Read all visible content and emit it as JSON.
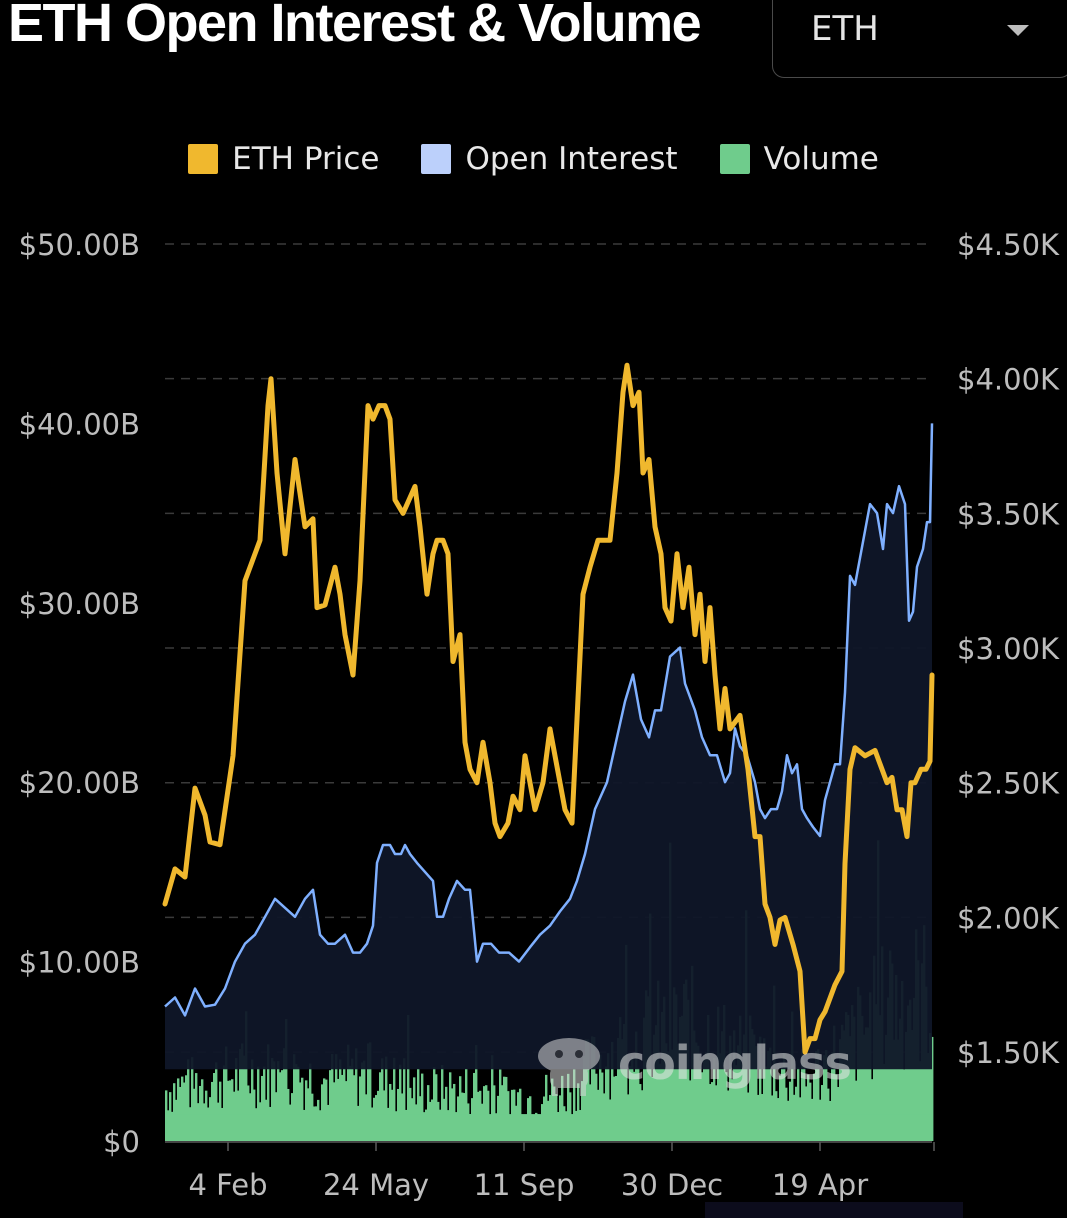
{
  "header": {
    "title": "ETH Open Interest & Volume"
  },
  "selector": {
    "value": "ETH"
  },
  "legend": [
    {
      "label": "ETH Price",
      "color": "#f0b82e"
    },
    {
      "label": "Open Interest",
      "color": "#bcd0fb"
    },
    {
      "label": "Volume",
      "color": "#6fcc8c"
    }
  ],
  "watermark": "coinglass",
  "chart_data": {
    "type": "line",
    "x_ticks": [
      "4 Feb",
      "24 May",
      "11 Sep",
      "30 Dec",
      "19 Apr"
    ],
    "left_axis": {
      "ticks": [
        "$0",
        "$10.00B",
        "$20.00B",
        "$30.00B",
        "$40.00B",
        "$50.00B"
      ],
      "range": [
        0,
        50
      ]
    },
    "right_axis": {
      "ticks": [
        "$1.50K",
        "$2.00K",
        "$2.50K",
        "$3.00K",
        "$3.50K",
        "$4.00K",
        "$4.50K"
      ],
      "range": [
        1170,
        4500
      ]
    },
    "grid": true,
    "legend_position": "top-center",
    "series": [
      {
        "name": "ETH Price",
        "axis": "right",
        "color": "#f0b82e",
        "points": [
          [
            0,
            2050
          ],
          [
            10,
            2180
          ],
          [
            20,
            2150
          ],
          [
            30,
            2480
          ],
          [
            40,
            2380
          ],
          [
            45,
            2280
          ],
          [
            55,
            2270
          ],
          [
            68,
            2600
          ],
          [
            80,
            3250
          ],
          [
            95,
            3400
          ],
          [
            103,
            3900
          ],
          [
            106,
            4000
          ],
          [
            112,
            3650
          ],
          [
            120,
            3350
          ],
          [
            130,
            3700
          ],
          [
            140,
            3450
          ],
          [
            148,
            3480
          ],
          [
            152,
            3150
          ],
          [
            160,
            3160
          ],
          [
            170,
            3300
          ],
          [
            175,
            3200
          ],
          [
            180,
            3050
          ],
          [
            188,
            2900
          ],
          [
            195,
            3250
          ],
          [
            203,
            3900
          ],
          [
            208,
            3850
          ],
          [
            214,
            3900
          ],
          [
            220,
            3900
          ],
          [
            225,
            3850
          ],
          [
            230,
            3550
          ],
          [
            238,
            3500
          ],
          [
            250,
            3600
          ],
          [
            255,
            3450
          ],
          [
            262,
            3200
          ],
          [
            268,
            3350
          ],
          [
            272,
            3400
          ],
          [
            278,
            3400
          ],
          [
            283,
            3350
          ],
          [
            288,
            2950
          ],
          [
            295,
            3050
          ],
          [
            300,
            2650
          ],
          [
            305,
            2550
          ],
          [
            312,
            2500
          ],
          [
            318,
            2650
          ],
          [
            325,
            2500
          ],
          [
            330,
            2350
          ],
          [
            335,
            2300
          ],
          [
            343,
            2350
          ],
          [
            348,
            2450
          ],
          [
            355,
            2400
          ],
          [
            360,
            2600
          ],
          [
            365,
            2500
          ],
          [
            370,
            2400
          ],
          [
            378,
            2500
          ],
          [
            385,
            2700
          ],
          [
            390,
            2600
          ],
          [
            395,
            2500
          ],
          [
            400,
            2400
          ],
          [
            407,
            2350
          ],
          [
            418,
            3200
          ],
          [
            425,
            3300
          ],
          [
            433,
            3400
          ],
          [
            445,
            3400
          ],
          [
            452,
            3650
          ],
          [
            458,
            3950
          ],
          [
            462,
            4050
          ],
          [
            468,
            3900
          ],
          [
            474,
            3950
          ],
          [
            478,
            3650
          ],
          [
            484,
            3700
          ],
          [
            490,
            3450
          ],
          [
            496,
            3350
          ],
          [
            500,
            3150
          ],
          [
            506,
            3100
          ],
          [
            512,
            3350
          ],
          [
            518,
            3150
          ],
          [
            524,
            3300
          ],
          [
            530,
            3050
          ],
          [
            535,
            3200
          ],
          [
            540,
            2950
          ],
          [
            545,
            3150
          ],
          [
            550,
            2900
          ],
          [
            555,
            2700
          ],
          [
            560,
            2850
          ],
          [
            565,
            2700
          ],
          [
            575,
            2750
          ],
          [
            583,
            2550
          ],
          [
            590,
            2300
          ],
          [
            595,
            2300
          ],
          [
            600,
            2050
          ],
          [
            605,
            2000
          ],
          [
            610,
            1900
          ],
          [
            615,
            1990
          ],
          [
            620,
            2000
          ],
          [
            628,
            1900
          ],
          [
            635,
            1800
          ],
          [
            640,
            1500
          ],
          [
            645,
            1550
          ],
          [
            650,
            1550
          ],
          [
            655,
            1620
          ],
          [
            660,
            1650
          ],
          [
            665,
            1700
          ],
          [
            670,
            1750
          ],
          [
            677,
            1800
          ],
          [
            680,
            2200
          ],
          [
            685,
            2550
          ],
          [
            690,
            2630
          ],
          [
            700,
            2600
          ],
          [
            710,
            2620
          ],
          [
            717,
            2550
          ],
          [
            722,
            2500
          ],
          [
            727,
            2520
          ],
          [
            732,
            2400
          ],
          [
            737,
            2400
          ],
          [
            742,
            2300
          ],
          [
            746,
            2500
          ],
          [
            750,
            2500
          ],
          [
            756,
            2550
          ],
          [
            761,
            2550
          ],
          [
            765,
            2580
          ],
          [
            767,
            2900
          ]
        ]
      },
      {
        "name": "Open Interest",
        "axis": "left",
        "color": "#7fb0ff",
        "points": [
          [
            0,
            7.5
          ],
          [
            10,
            8.0
          ],
          [
            20,
            7.0
          ],
          [
            30,
            8.5
          ],
          [
            40,
            7.5
          ],
          [
            50,
            7.6
          ],
          [
            60,
            8.5
          ],
          [
            70,
            10.0
          ],
          [
            80,
            11.0
          ],
          [
            90,
            11.5
          ],
          [
            100,
            12.5
          ],
          [
            110,
            13.5
          ],
          [
            120,
            13.0
          ],
          [
            130,
            12.5
          ],
          [
            140,
            13.5
          ],
          [
            148,
            14.0
          ],
          [
            155,
            11.5
          ],
          [
            163,
            11.0
          ],
          [
            170,
            11.0
          ],
          [
            180,
            11.5
          ],
          [
            188,
            10.5
          ],
          [
            195,
            10.5
          ],
          [
            202,
            11.0
          ],
          [
            208,
            12.0
          ],
          [
            212,
            15.5
          ],
          [
            218,
            16.5
          ],
          [
            225,
            16.5
          ],
          [
            230,
            16.0
          ],
          [
            236,
            16.0
          ],
          [
            240,
            16.5
          ],
          [
            245,
            16.0
          ],
          [
            252,
            15.5
          ],
          [
            260,
            15.0
          ],
          [
            268,
            14.5
          ],
          [
            272,
            12.5
          ],
          [
            278,
            12.5
          ],
          [
            284,
            13.5
          ],
          [
            292,
            14.5
          ],
          [
            300,
            14.0
          ],
          [
            305,
            14.0
          ],
          [
            312,
            10.0
          ],
          [
            318,
            11.0
          ],
          [
            326,
            11.0
          ],
          [
            334,
            10.5
          ],
          [
            344,
            10.5
          ],
          [
            354,
            10.0
          ],
          [
            365,
            10.8
          ],
          [
            375,
            11.5
          ],
          [
            385,
            12.0
          ],
          [
            395,
            12.8
          ],
          [
            405,
            13.5
          ],
          [
            412,
            14.5
          ],
          [
            420,
            16.0
          ],
          [
            430,
            18.5
          ],
          [
            442,
            20.0
          ],
          [
            452,
            22.5
          ],
          [
            460,
            24.5
          ],
          [
            468,
            26.0
          ],
          [
            476,
            23.5
          ],
          [
            484,
            22.5
          ],
          [
            490,
            24.0
          ],
          [
            496,
            24.0
          ],
          [
            505,
            27.0
          ],
          [
            515,
            27.5
          ],
          [
            520,
            25.5
          ],
          [
            530,
            24.0
          ],
          [
            537,
            22.5
          ],
          [
            545,
            21.5
          ],
          [
            552,
            21.5
          ],
          [
            560,
            20.0
          ],
          [
            565,
            20.5
          ],
          [
            570,
            23.0
          ],
          [
            575,
            22.0
          ],
          [
            582,
            21.5
          ],
          [
            590,
            20.0
          ],
          [
            595,
            18.5
          ],
          [
            600,
            18.0
          ],
          [
            606,
            18.5
          ],
          [
            612,
            18.5
          ],
          [
            617,
            19.5
          ],
          [
            622,
            21.5
          ],
          [
            627,
            20.5
          ],
          [
            632,
            21.0
          ],
          [
            637,
            18.5
          ],
          [
            642,
            18.0
          ],
          [
            648,
            17.5
          ],
          [
            655,
            17.0
          ],
          [
            660,
            19.0
          ],
          [
            665,
            20.0
          ],
          [
            670,
            21.0
          ],
          [
            675,
            21.0
          ],
          [
            680,
            25.0
          ],
          [
            685,
            31.5
          ],
          [
            690,
            31.0
          ],
          [
            700,
            34.0
          ],
          [
            705,
            35.5
          ],
          [
            712,
            35.0
          ],
          [
            718,
            33.0
          ],
          [
            722,
            35.5
          ],
          [
            728,
            35.0
          ],
          [
            734,
            36.5
          ],
          [
            740,
            35.5
          ],
          [
            744,
            29.0
          ],
          [
            748,
            29.5
          ],
          [
            752,
            32.0
          ],
          [
            758,
            33.0
          ],
          [
            762,
            34.5
          ],
          [
            765,
            34.5
          ],
          [
            767,
            40.0
          ]
        ]
      },
      {
        "name": "Volume",
        "axis": "left",
        "color": "#6fcc8c",
        "note": "daily bars (approximate envelope)",
        "points": [
          [
            0,
            3.0
          ],
          [
            40,
            3.5
          ],
          [
            80,
            4.0
          ],
          [
            120,
            4.0
          ],
          [
            160,
            3.5
          ],
          [
            200,
            4.0
          ],
          [
            240,
            3.0
          ],
          [
            280,
            3.0
          ],
          [
            320,
            3.0
          ],
          [
            360,
            2.5
          ],
          [
            400,
            3.0
          ],
          [
            440,
            5.0
          ],
          [
            480,
            6.0
          ],
          [
            520,
            7.0
          ],
          [
            560,
            5.5
          ],
          [
            600,
            4.5
          ],
          [
            640,
            3.5
          ],
          [
            680,
            5.5
          ],
          [
            720,
            8.0
          ],
          [
            767,
            9.0
          ]
        ]
      }
    ]
  }
}
